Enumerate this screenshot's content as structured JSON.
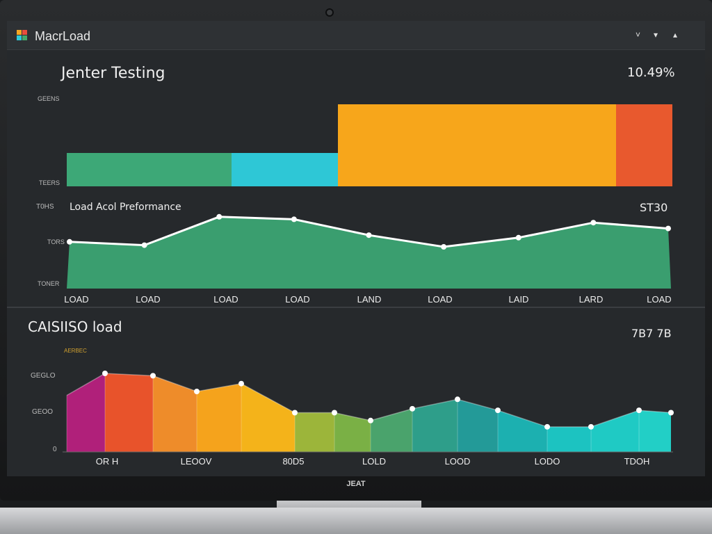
{
  "app": {
    "title": "MacrLoad",
    "brand": "JEAT"
  },
  "window_controls": [
    {
      "icon": "minimize-icon",
      "glyph": "˅"
    },
    {
      "icon": "dropdown-icon",
      "glyph": "▾"
    },
    {
      "icon": "expand-icon",
      "glyph": "▴"
    }
  ],
  "logo_colors": [
    "#f5a623",
    "#e84e3c",
    "#2ecad8",
    "#43a86a"
  ],
  "panel1": {
    "title": "Jenter Testing",
    "value": "10.49%",
    "y_top_label": "GEENS",
    "y_bottom_label": "TEERS"
  },
  "bar_chart_data": {
    "type": "bar",
    "colors": [
      "#3da877",
      "#2ec7d6",
      "#f7a61b",
      "#e8592e"
    ]
  },
  "panel2": {
    "title": "Load Acol Preformance",
    "title_prefix": "T0HS",
    "value": "ST30",
    "y_top_label": "TORS",
    "y_bottom_label": "TONER",
    "x_labels": [
      "LOAD",
      "LOAD",
      "LOAD",
      "LOAD",
      "LAND",
      "LOAD",
      "LAID",
      "LARD",
      "LOAD"
    ]
  },
  "line_chart_data": {
    "type": "area",
    "points": [
      56,
      52,
      86,
      83,
      64,
      50,
      61,
      79,
      72
    ],
    "fill": "#3a9e6f",
    "line": "#ffffff"
  },
  "panel3": {
    "title": "CAISIISO load",
    "value": "7B7 7B",
    "legend_text": "AERBEC",
    "y_labels": [
      "GEGLO",
      "GEOO",
      "0"
    ],
    "x_labels": [
      "OR H",
      "LEOOV",
      "80D5",
      "LOLD",
      "LOOD",
      "LODO",
      "TDOH"
    ]
  },
  "area_chart_data": {
    "type": "area",
    "points": [
      72,
      100,
      97,
      77,
      87,
      50,
      50,
      40,
      55,
      67,
      53,
      32,
      32,
      53,
      50
    ],
    "colors": [
      "#b0207a",
      "#e8532b",
      "#ee8c2a",
      "#f5a31c",
      "#f4b31a",
      "#9cb53a",
      "#7ab045",
      "#4aa36c",
      "#2e9e8a",
      "#239a98",
      "#1cb0b0",
      "#1cc3c1",
      "#1fcac4",
      "#22cfc6"
    ]
  }
}
